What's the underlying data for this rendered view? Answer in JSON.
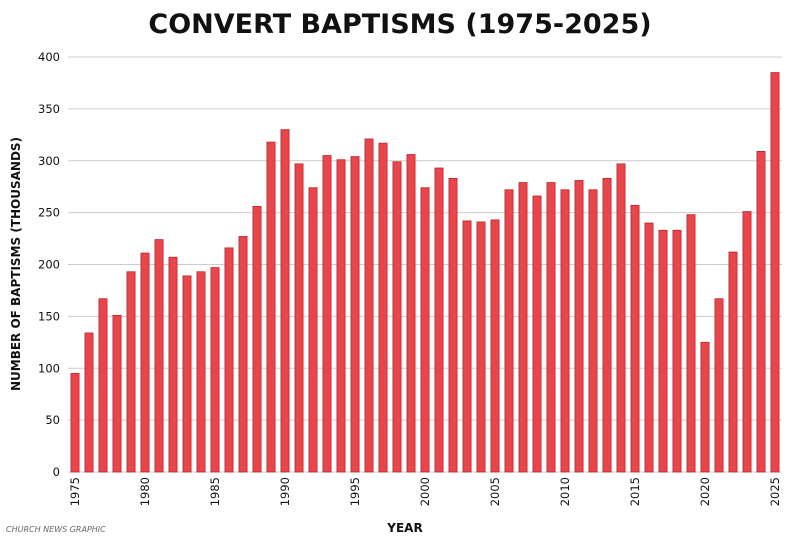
{
  "chart_data": {
    "type": "bar",
    "title": "CONVERT BAPTISMS (1975-2025)",
    "xlabel": "YEAR",
    "ylabel": "NUMBER OF BAPTISMS (THOUSANDS)",
    "ylim": [
      0,
      400
    ],
    "yticks": [
      "0",
      "50",
      "100",
      "150",
      "200",
      "250",
      "300",
      "350",
      "400"
    ],
    "xticks": [
      "1975",
      "1980",
      "1985",
      "1990",
      "1995",
      "2000",
      "2005",
      "2010",
      "2015",
      "2020",
      "2025"
    ],
    "grid": true,
    "bar_color": "#e8464b",
    "categories": [
      "1975",
      "1976",
      "1977",
      "1978",
      "1979",
      "1980",
      "1981",
      "1982",
      "1983",
      "1984",
      "1985",
      "1986",
      "1987",
      "1988",
      "1989",
      "1990",
      "1991",
      "1992",
      "1993",
      "1994",
      "1995",
      "1996",
      "1997",
      "1998",
      "1999",
      "2000",
      "2001",
      "2002",
      "2003",
      "2004",
      "2005",
      "2006",
      "2007",
      "2008",
      "2009",
      "2010",
      "2011",
      "2012",
      "2013",
      "2014",
      "2015",
      "2016",
      "2017",
      "2018",
      "2019",
      "2020",
      "2021",
      "2022",
      "2023",
      "2024",
      "2025"
    ],
    "values": [
      95,
      134,
      167,
      151,
      193,
      211,
      224,
      207,
      189,
      193,
      197,
      216,
      227,
      256,
      318,
      330,
      297,
      274,
      305,
      301,
      304,
      321,
      317,
      299,
      306,
      274,
      293,
      283,
      242,
      241,
      243,
      272,
      279,
      266,
      279,
      272,
      281,
      272,
      283,
      297,
      257,
      240,
      233,
      233,
      248,
      125,
      167,
      212,
      251,
      309,
      385
    ],
    "credit": "CHURCH NEWS GRAPHIC"
  }
}
